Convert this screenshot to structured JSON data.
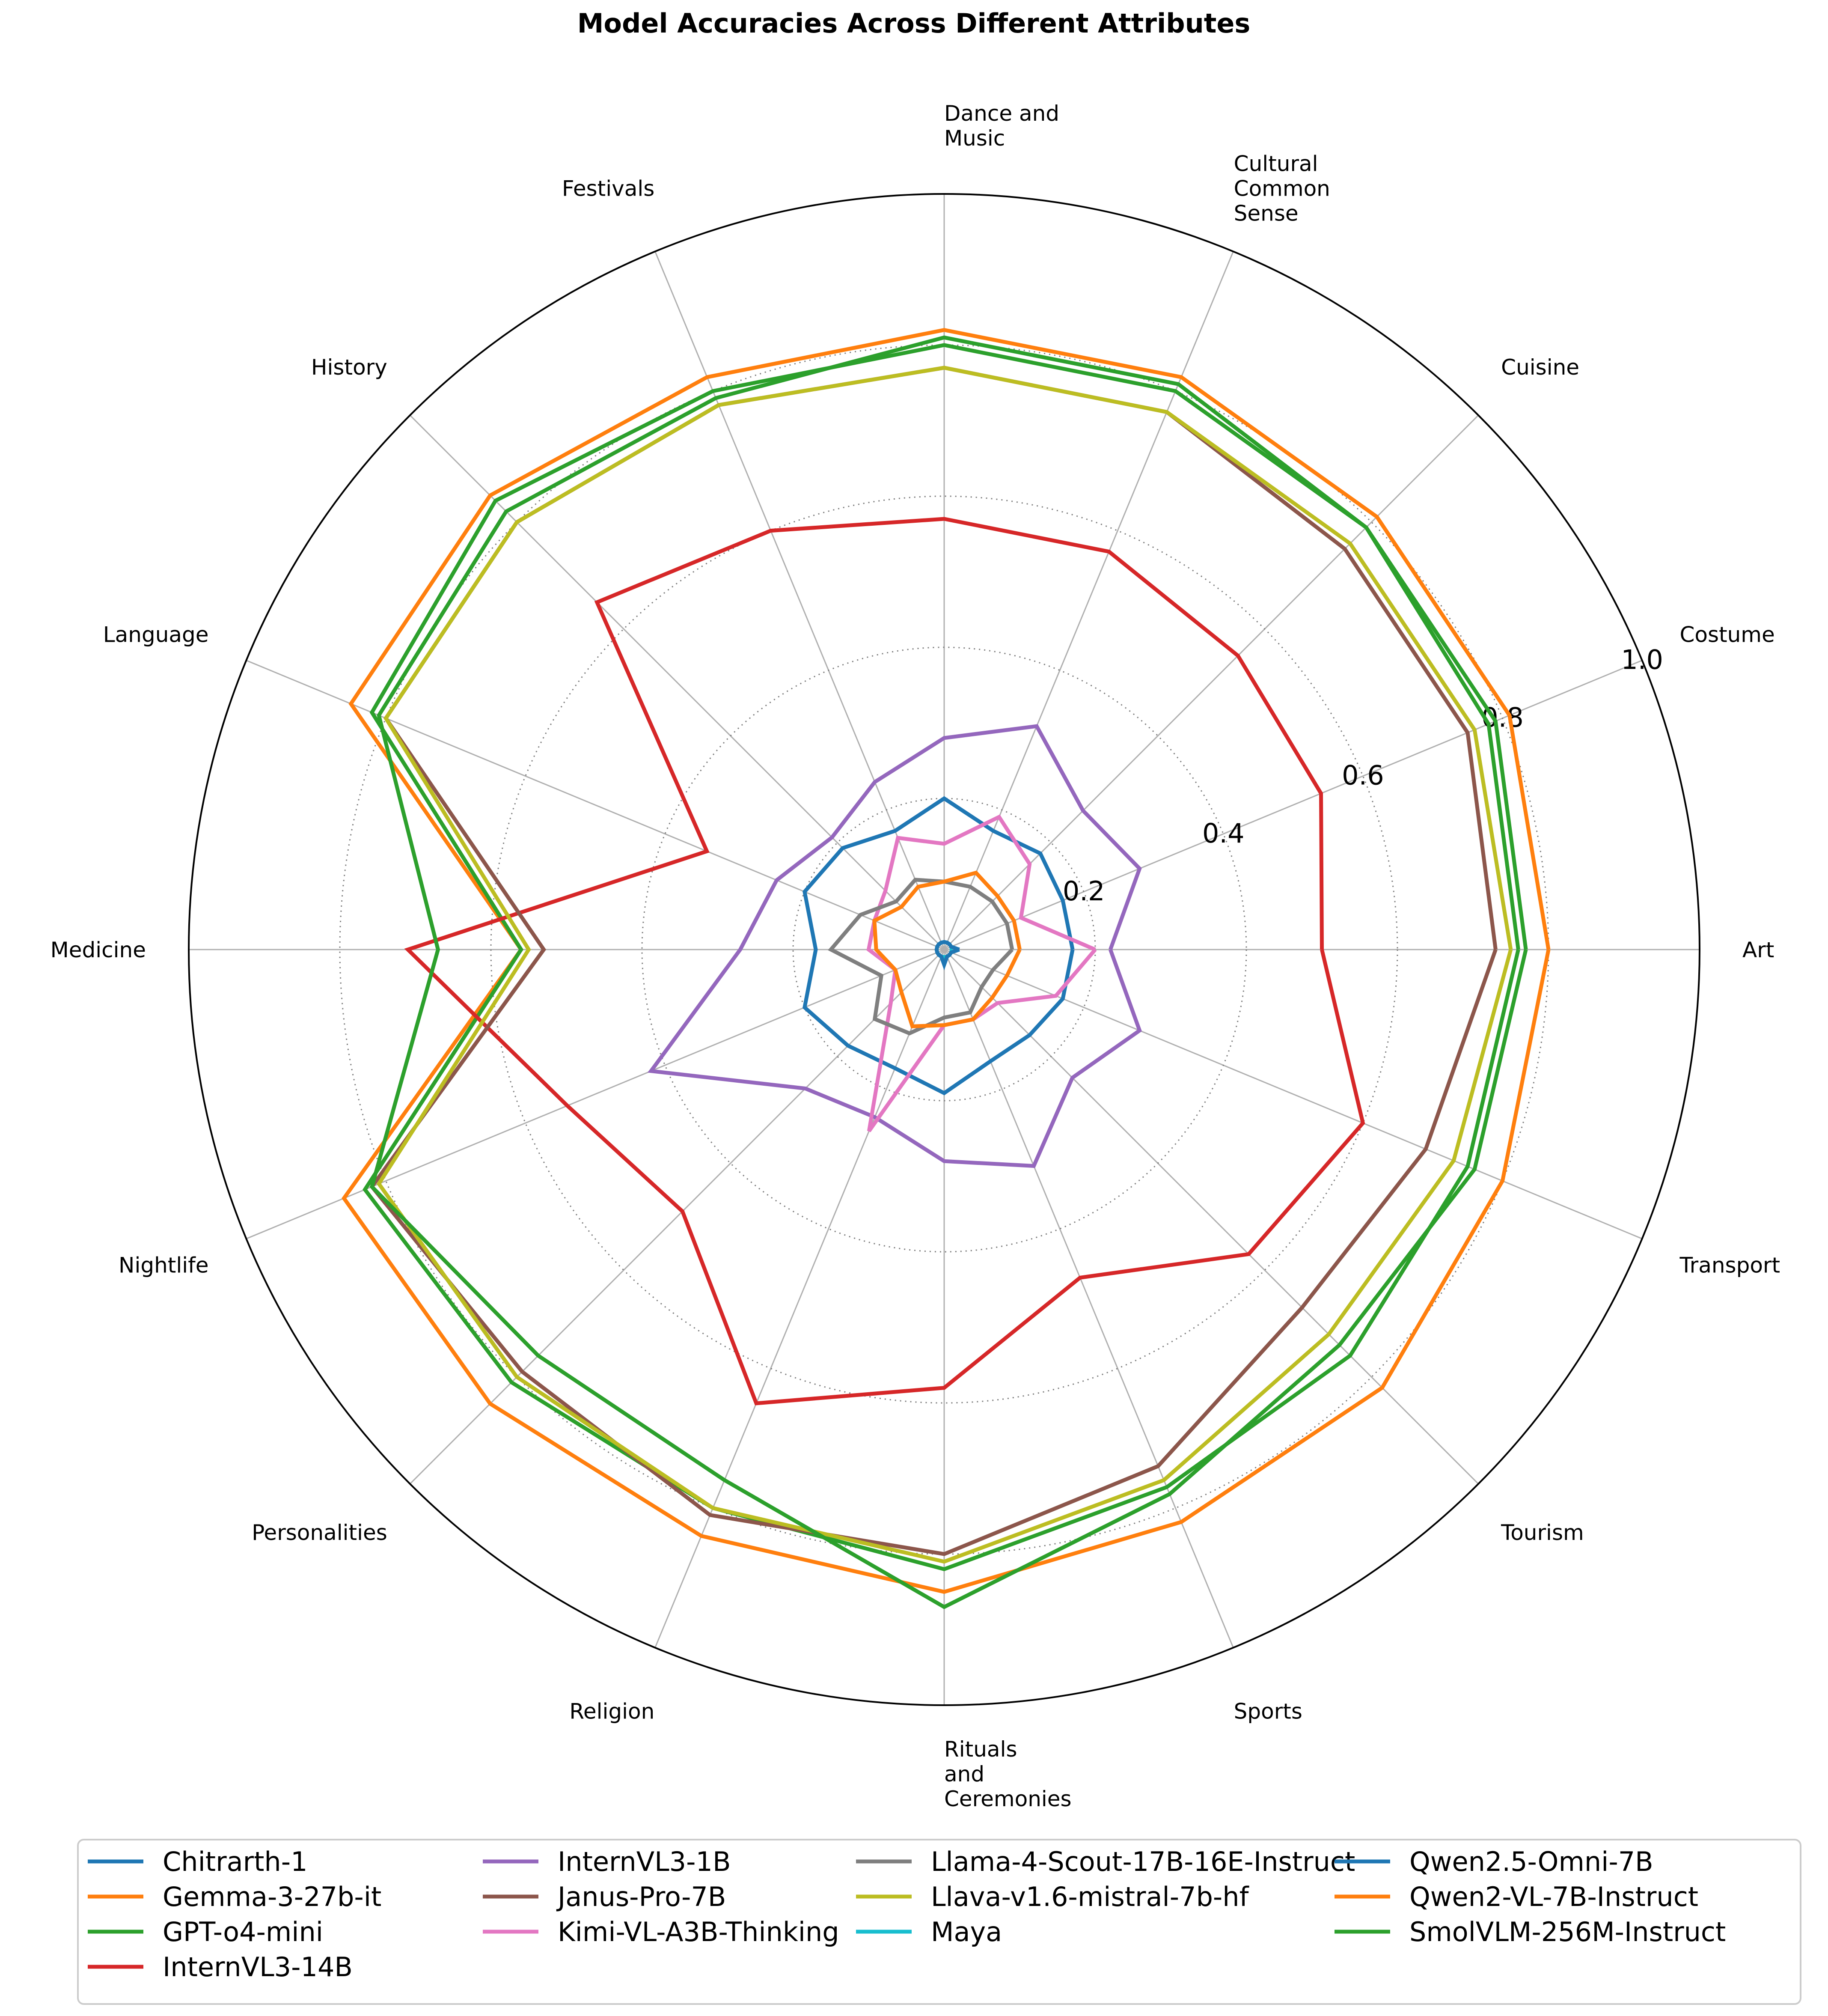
{
  "chart_data": {
    "type": "radar",
    "title": "Model Accuracies Across Different Attributes",
    "categories": [
      [
        "Art"
      ],
      [
        "Transport"
      ],
      [
        "Tourism"
      ],
      [
        "Sports"
      ],
      [
        "Rituals",
        "and",
        "Ceremonies"
      ],
      [
        "Religion"
      ],
      [
        "Personalities"
      ],
      [
        "Nightlife"
      ],
      [
        "Medicine"
      ],
      [
        "Language"
      ],
      [
        "History"
      ],
      [
        "Festivals"
      ],
      [
        "Dance and",
        "Music"
      ],
      [
        "Cultural",
        "Common",
        "Sense"
      ],
      [
        "Cuisine"
      ],
      [
        "Costume"
      ]
    ],
    "rlim": [
      0,
      1.0
    ],
    "rticks": [
      "0.2",
      "0.4",
      "0.6",
      "0.8",
      "1.0"
    ],
    "grid": true,
    "legend_position": "bottom",
    "series": [
      {
        "name": "Chitrarth-1",
        "color": "#1f77b4",
        "values": [
          0.17,
          0.17,
          0.16,
          0.16,
          0.19,
          0.17,
          0.18,
          0.2,
          0.17,
          0.2,
          0.19,
          0.17,
          0.2,
          0.17,
          0.18,
          0.17
        ]
      },
      {
        "name": "Gemma-3-27b-it",
        "color": "#ff7f0e",
        "values": [
          0.8,
          0.8,
          0.82,
          0.82,
          0.85,
          0.84,
          0.85,
          0.86,
          0.56,
          0.85,
          0.85,
          0.82,
          0.82,
          0.82,
          0.81,
          0.81
        ]
      },
      {
        "name": "GPT-o4-mini",
        "color": "#2ca02c",
        "values": [
          0.76,
          0.75,
          0.76,
          0.77,
          0.82,
          0.8,
          0.81,
          0.83,
          0.56,
          0.82,
          0.84,
          0.8,
          0.8,
          0.8,
          0.79,
          0.78
        ]
      },
      {
        "name": "InternVL3-14B",
        "color": "#d62728",
        "values": [
          0.5,
          0.6,
          0.57,
          0.47,
          0.58,
          0.65,
          0.49,
          0.54,
          0.71,
          0.34,
          0.65,
          0.6,
          0.57,
          0.57,
          0.55,
          0.54
        ]
      },
      {
        "name": "InternVL3-1B",
        "color": "#9467bd",
        "values": [
          0.22,
          0.28,
          0.24,
          0.31,
          0.28,
          0.24,
          0.26,
          0.42,
          0.27,
          0.24,
          0.21,
          0.24,
          0.28,
          0.32,
          0.26,
          0.28
        ]
      },
      {
        "name": "Janus-Pro-7B",
        "color": "#8c564b",
        "values": [
          0.73,
          0.69,
          0.67,
          0.74,
          0.8,
          0.81,
          0.79,
          0.82,
          0.53,
          0.8,
          0.8,
          0.78,
          0.77,
          0.77,
          0.75,
          0.75
        ]
      },
      {
        "name": "Kimi-VL-A3B-Thinking",
        "color": "#e377c2",
        "values": [
          0.2,
          0.16,
          0.1,
          0.1,
          0.1,
          0.26,
          0.1,
          0.07,
          0.1,
          0.1,
          0.11,
          0.16,
          0.14,
          0.19,
          0.16,
          0.11
        ]
      },
      {
        "name": "Llama-4-Scout-17B-16E-Instruct",
        "color": "#7f7f7f",
        "values": [
          0.09,
          0.07,
          0.07,
          0.09,
          0.09,
          0.12,
          0.13,
          0.09,
          0.15,
          0.12,
          0.09,
          0.1,
          0.09,
          0.09,
          0.09,
          0.09
        ]
      },
      {
        "name": "Llava-v1.6-mistral-7b-hf",
        "color": "#bcbd22",
        "values": [
          0.75,
          0.73,
          0.72,
          0.76,
          0.81,
          0.8,
          0.8,
          0.81,
          0.55,
          0.8,
          0.8,
          0.78,
          0.77,
          0.77,
          0.76,
          0.76
        ]
      },
      {
        "name": "Maya",
        "color": "#17becf",
        "values": [
          0.01,
          0.01,
          0.01,
          0.01,
          0.01,
          0.01,
          0.01,
          0.01,
          0.01,
          0.01,
          0.01,
          0.01,
          0.01,
          0.01,
          0.01,
          0.01
        ]
      },
      {
        "name": "Qwen2.5-Omni-7B",
        "color": "#1f77b4",
        "values": [
          0.02,
          0.01,
          0.01,
          0.01,
          0.02,
          0.01,
          0.01,
          0.01,
          0.01,
          0.01,
          0.01,
          0.01,
          0.01,
          0.01,
          0.01,
          0.01
        ]
      },
      {
        "name": "Qwen2-VL-7B-Instruct",
        "color": "#ff7f0e",
        "values": [
          0.1,
          0.09,
          0.09,
          0.1,
          0.1,
          0.11,
          0.08,
          0.07,
          0.09,
          0.1,
          0.08,
          0.09,
          0.09,
          0.11,
          0.1,
          0.1
        ]
      },
      {
        "name": "SmolVLM-256M-Instruct",
        "color": "#2ca02c",
        "values": [
          0.77,
          0.76,
          0.74,
          0.78,
          0.87,
          0.76,
          0.76,
          0.82,
          0.67,
          0.81,
          0.82,
          0.79,
          0.81,
          0.81,
          0.79,
          0.79
        ]
      }
    ]
  }
}
